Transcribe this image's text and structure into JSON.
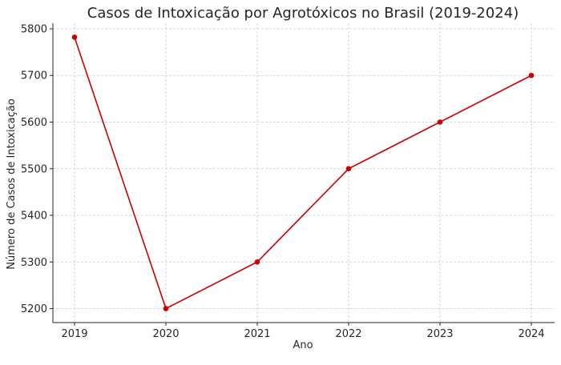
{
  "chart_data": {
    "type": "line",
    "title": "Casos de Intoxicação por Agrotóxicos no Brasil (2019-2024)",
    "xlabel": "Ano",
    "ylabel": "Número de Casos de Intoxicação",
    "x": [
      "2019",
      "2020",
      "2021",
      "2022",
      "2023",
      "2024"
    ],
    "series": [
      {
        "name": "",
        "values": [
          5782,
          5200,
          5300,
          5500,
          5600,
          5700
        ],
        "color": "#cc0000"
      }
    ],
    "yticks": [
      5200,
      5300,
      5400,
      5500,
      5600,
      5700,
      5800
    ],
    "ylim": [
      5170,
      5812
    ],
    "grid": true,
    "legend": "none"
  }
}
